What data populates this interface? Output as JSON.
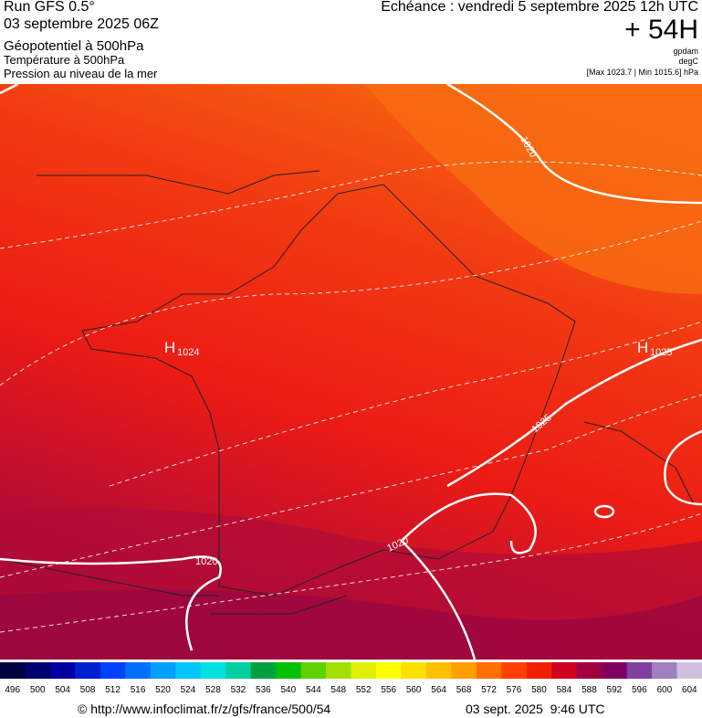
{
  "header": {
    "run": "Run GFS 0.5°",
    "date": "03 septembre 2025 06Z",
    "layer_1": "Géopotentiel à 500hPa",
    "layer_2": "Température à 500hPa",
    "layer_3": "Pression au niveau de la mer",
    "forecast": "Echéance : vendredi 5 septembre 2025 12h UTC",
    "lead": "+ 54H",
    "unit_1": "gpdam",
    "unit_2": "degC",
    "range": "[Max 1023.7 | Min 1015.6] hPa"
  },
  "map": {
    "highs": [
      {
        "symbol": "H",
        "value": "1024"
      },
      {
        "symbol": "H",
        "value": "1025"
      }
    ],
    "isobar_labels": [
      "1020",
      "1025",
      "1020",
      "1020"
    ]
  },
  "legend": {
    "labels": [
      "496",
      "500",
      "504",
      "508",
      "512",
      "516",
      "520",
      "524",
      "528",
      "532",
      "536",
      "540",
      "544",
      "548",
      "552",
      "556",
      "560",
      "564",
      "568",
      "572",
      "576",
      "580",
      "584",
      "588",
      "592",
      "596",
      "600",
      "604"
    ],
    "colors": [
      "#000040",
      "#000070",
      "#0000a0",
      "#0020d0",
      "#0040ff",
      "#0070ff",
      "#00a0ff",
      "#00c8ff",
      "#00e0e0",
      "#00d0a0",
      "#00a040",
      "#00c000",
      "#60d000",
      "#a0e000",
      "#e0f000",
      "#ffff00",
      "#ffe000",
      "#ffc000",
      "#ffa000",
      "#ff7000",
      "#ff4000",
      "#f02000",
      "#d00020",
      "#a00040",
      "#800060",
      "#8040a0",
      "#a080c0",
      "#d0c0e0"
    ]
  },
  "footer": {
    "source": "© http://www.infoclimat.fr/z/gfs/france/500/54",
    "timestamp": "03 sept. 2025  9:46 UTC"
  }
}
